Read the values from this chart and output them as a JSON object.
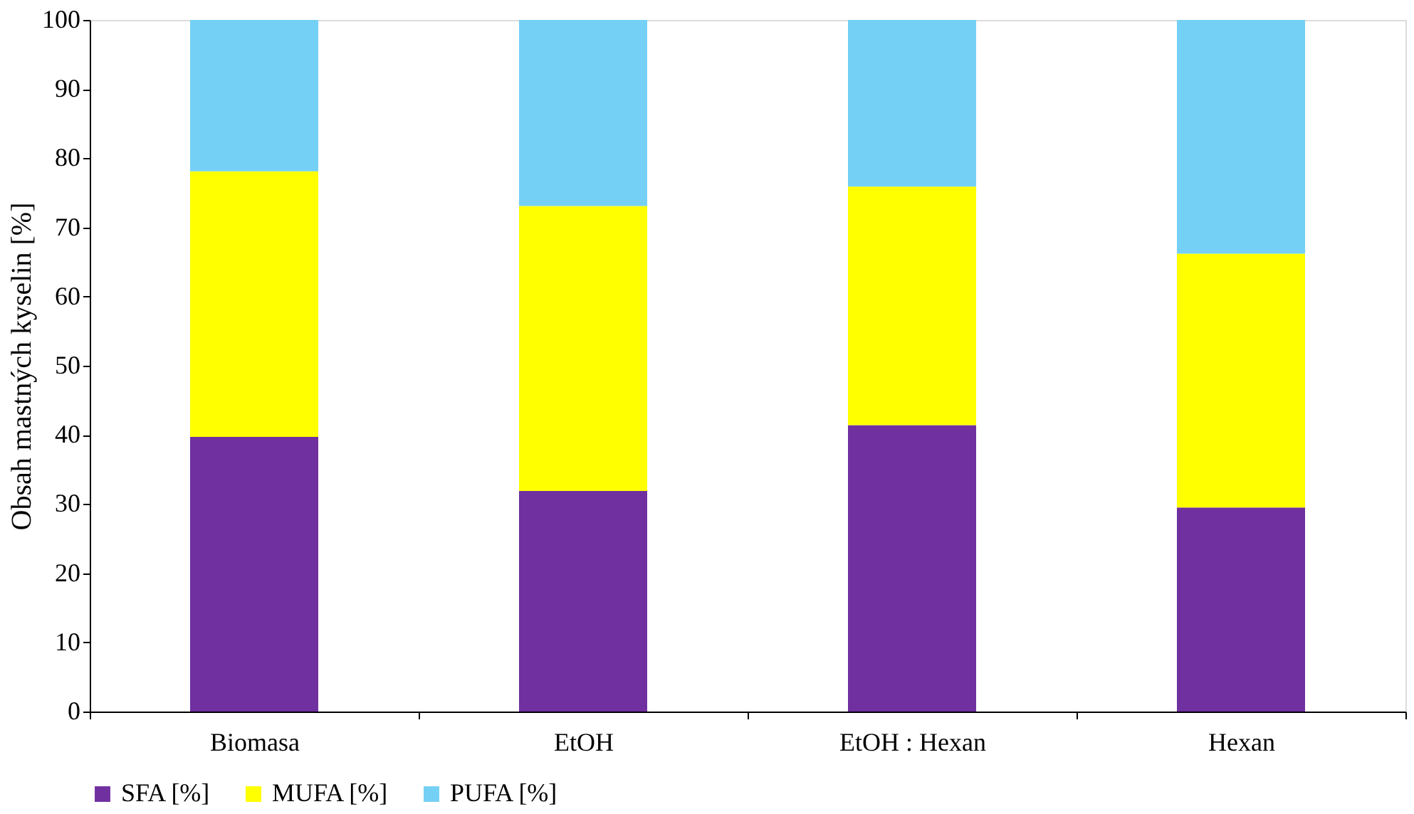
{
  "chart_data": {
    "type": "bar",
    "stacked": true,
    "ylabel": "Obsah mastných kyselin [%]",
    "categories": [
      "Biomasa",
      "EtOH",
      "EtOH : Hexan",
      "Hexan"
    ],
    "series": [
      {
        "name": "SFA [%]",
        "color": "#7030a0",
        "values": [
          39.7,
          31.9,
          41.4,
          29.5
        ]
      },
      {
        "name": "MUFA [%]",
        "color": "#ffff00",
        "values": [
          38.4,
          41.2,
          34.5,
          36.7
        ]
      },
      {
        "name": "PUFA [%]",
        "color": "#75d0f5",
        "values": [
          21.9,
          26.9,
          24.1,
          33.8
        ]
      }
    ],
    "ylim": [
      0,
      100
    ],
    "yticks": [
      0,
      10,
      20,
      30,
      40,
      50,
      60,
      70,
      80,
      90,
      100
    ],
    "grid": false,
    "legend": "bottom"
  }
}
